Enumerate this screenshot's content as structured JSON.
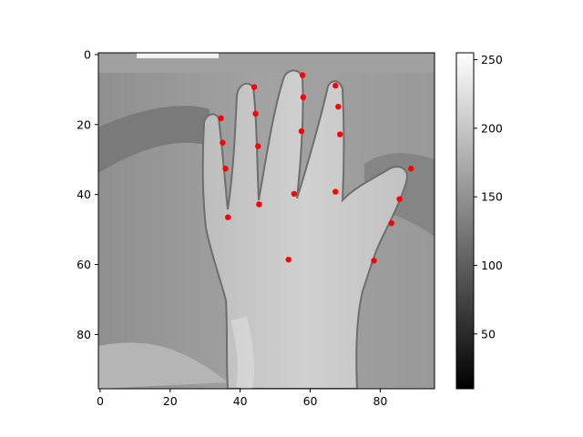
{
  "image": {
    "description_source": "grayscale hand image",
    "x_range": [
      -0.5,
      95.5
    ],
    "y_range": [
      95.5,
      -0.5
    ],
    "x_ticks": [
      0,
      20,
      40,
      60,
      80
    ],
    "y_ticks": [
      0,
      20,
      40,
      60,
      80
    ],
    "keypoint_color": "#ff0000"
  },
  "keypoints": [
    {
      "x": 34.5,
      "y": 18.2
    },
    {
      "x": 35.0,
      "y": 25.2
    },
    {
      "x": 35.8,
      "y": 32.6
    },
    {
      "x": 36.5,
      "y": 46.5
    },
    {
      "x": 44.0,
      "y": 9.3
    },
    {
      "x": 44.4,
      "y": 16.9
    },
    {
      "x": 45.1,
      "y": 26.2
    },
    {
      "x": 45.4,
      "y": 42.8
    },
    {
      "x": 57.8,
      "y": 5.9
    },
    {
      "x": 58.0,
      "y": 12.2
    },
    {
      "x": 57.5,
      "y": 21.9
    },
    {
      "x": 55.4,
      "y": 39.8
    },
    {
      "x": 67.2,
      "y": 8.9
    },
    {
      "x": 68.0,
      "y": 14.9
    },
    {
      "x": 68.5,
      "y": 22.8
    },
    {
      "x": 67.2,
      "y": 39.2
    },
    {
      "x": 88.8,
      "y": 32.6
    },
    {
      "x": 85.5,
      "y": 41.3
    },
    {
      "x": 83.2,
      "y": 48.2
    },
    {
      "x": 78.2,
      "y": 58.9
    },
    {
      "x": 53.8,
      "y": 58.6
    }
  ],
  "colorbar": {
    "range": [
      10,
      255
    ],
    "ticks": [
      50,
      100,
      150,
      200,
      250
    ]
  }
}
